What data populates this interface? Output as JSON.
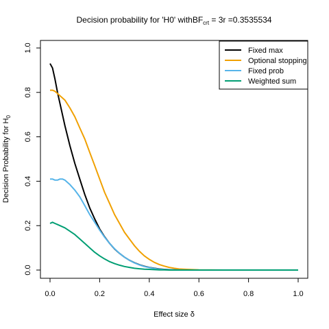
{
  "chart_data": {
    "type": "line",
    "title": "Decision probability for 'H0' withBF",
    "title_sub": "crt",
    "title_suffix": " = 3r =0.3535534",
    "xlabel": "Effect size δ",
    "ylabel": "Decision Probability for H",
    "ylabel_sub": "0",
    "xlim": [
      0,
      1
    ],
    "ylim": [
      0,
      1
    ],
    "xticks": [
      0.0,
      0.2,
      0.4,
      0.6,
      0.8,
      1.0
    ],
    "yticks": [
      0.0,
      0.2,
      0.4,
      0.6,
      0.8,
      1.0
    ],
    "xtick_labels": [
      "0.0",
      "0.2",
      "0.4",
      "0.6",
      "0.8",
      "1.0"
    ],
    "ytick_labels": [
      "0.0",
      "0.2",
      "0.4",
      "0.6",
      "0.8",
      "1.0"
    ],
    "grid": false,
    "legend_position": "top-right",
    "series": [
      {
        "name": "Fixed max",
        "color": "#000000",
        "x": [
          0.0,
          0.01,
          0.02,
          0.03,
          0.04,
          0.05,
          0.06,
          0.08,
          0.1,
          0.12,
          0.14,
          0.16,
          0.18,
          0.2,
          0.22,
          0.24,
          0.26,
          0.28,
          0.3,
          0.32,
          0.34,
          0.36,
          0.38,
          0.4,
          0.42,
          0.44,
          0.46,
          0.48,
          0.5,
          0.55,
          0.6,
          0.7,
          0.8,
          0.9,
          1.0
        ],
        "y": [
          0.93,
          0.91,
          0.86,
          0.8,
          0.75,
          0.7,
          0.65,
          0.56,
          0.48,
          0.41,
          0.34,
          0.28,
          0.23,
          0.185,
          0.15,
          0.12,
          0.095,
          0.075,
          0.058,
          0.044,
          0.033,
          0.024,
          0.017,
          0.012,
          0.008,
          0.005,
          0.003,
          0.002,
          0.001,
          0.0005,
          0.0,
          0.0,
          0.0,
          0.0,
          0.0
        ]
      },
      {
        "name": "Optional stopping",
        "color": "#f0a000",
        "x": [
          0.0,
          0.01,
          0.02,
          0.03,
          0.04,
          0.05,
          0.06,
          0.08,
          0.1,
          0.12,
          0.14,
          0.16,
          0.18,
          0.2,
          0.22,
          0.24,
          0.26,
          0.28,
          0.3,
          0.32,
          0.34,
          0.36,
          0.38,
          0.4,
          0.42,
          0.44,
          0.46,
          0.48,
          0.5,
          0.52,
          0.55,
          0.6,
          0.7,
          0.8,
          0.9,
          1.0
        ],
        "y": [
          0.81,
          0.81,
          0.805,
          0.795,
          0.785,
          0.775,
          0.765,
          0.73,
          0.69,
          0.64,
          0.59,
          0.53,
          0.47,
          0.41,
          0.35,
          0.3,
          0.25,
          0.21,
          0.17,
          0.14,
          0.11,
          0.085,
          0.064,
          0.048,
          0.035,
          0.025,
          0.018,
          0.012,
          0.008,
          0.005,
          0.003,
          0.001,
          0.0,
          0.0,
          0.0,
          0.0
        ]
      },
      {
        "name": "Fixed prob",
        "color": "#56b4e9",
        "x": [
          0.0,
          0.01,
          0.02,
          0.03,
          0.04,
          0.05,
          0.06,
          0.07,
          0.08,
          0.1,
          0.12,
          0.14,
          0.16,
          0.18,
          0.2,
          0.22,
          0.24,
          0.26,
          0.28,
          0.3,
          0.32,
          0.34,
          0.36,
          0.38,
          0.4,
          0.42,
          0.44,
          0.46,
          0.48,
          0.5,
          0.55,
          0.6,
          0.7,
          0.8,
          0.9,
          1.0
        ],
        "y": [
          0.41,
          0.41,
          0.405,
          0.405,
          0.41,
          0.41,
          0.405,
          0.395,
          0.385,
          0.36,
          0.33,
          0.29,
          0.25,
          0.215,
          0.18,
          0.148,
          0.12,
          0.096,
          0.075,
          0.058,
          0.044,
          0.032,
          0.023,
          0.016,
          0.011,
          0.007,
          0.004,
          0.0025,
          0.0015,
          0.001,
          0.0,
          0.0,
          0.0,
          0.0,
          0.0,
          0.0
        ]
      },
      {
        "name": "Weighted sum",
        "color": "#009e73",
        "x": [
          0.0,
          0.01,
          0.02,
          0.03,
          0.04,
          0.05,
          0.06,
          0.08,
          0.1,
          0.12,
          0.14,
          0.16,
          0.18,
          0.2,
          0.22,
          0.24,
          0.26,
          0.28,
          0.3,
          0.32,
          0.34,
          0.36,
          0.38,
          0.4,
          0.42,
          0.44,
          0.46,
          0.48,
          0.5,
          0.55,
          0.6,
          0.7,
          0.8,
          0.9,
          1.0
        ],
        "y": [
          0.21,
          0.215,
          0.21,
          0.205,
          0.2,
          0.195,
          0.19,
          0.175,
          0.16,
          0.14,
          0.12,
          0.1,
          0.08,
          0.064,
          0.05,
          0.038,
          0.029,
          0.022,
          0.016,
          0.012,
          0.008,
          0.006,
          0.004,
          0.003,
          0.002,
          0.001,
          0.0005,
          0.0,
          0.0,
          0.0,
          0.0,
          0.0,
          0.0,
          0.0,
          0.0
        ]
      }
    ]
  }
}
